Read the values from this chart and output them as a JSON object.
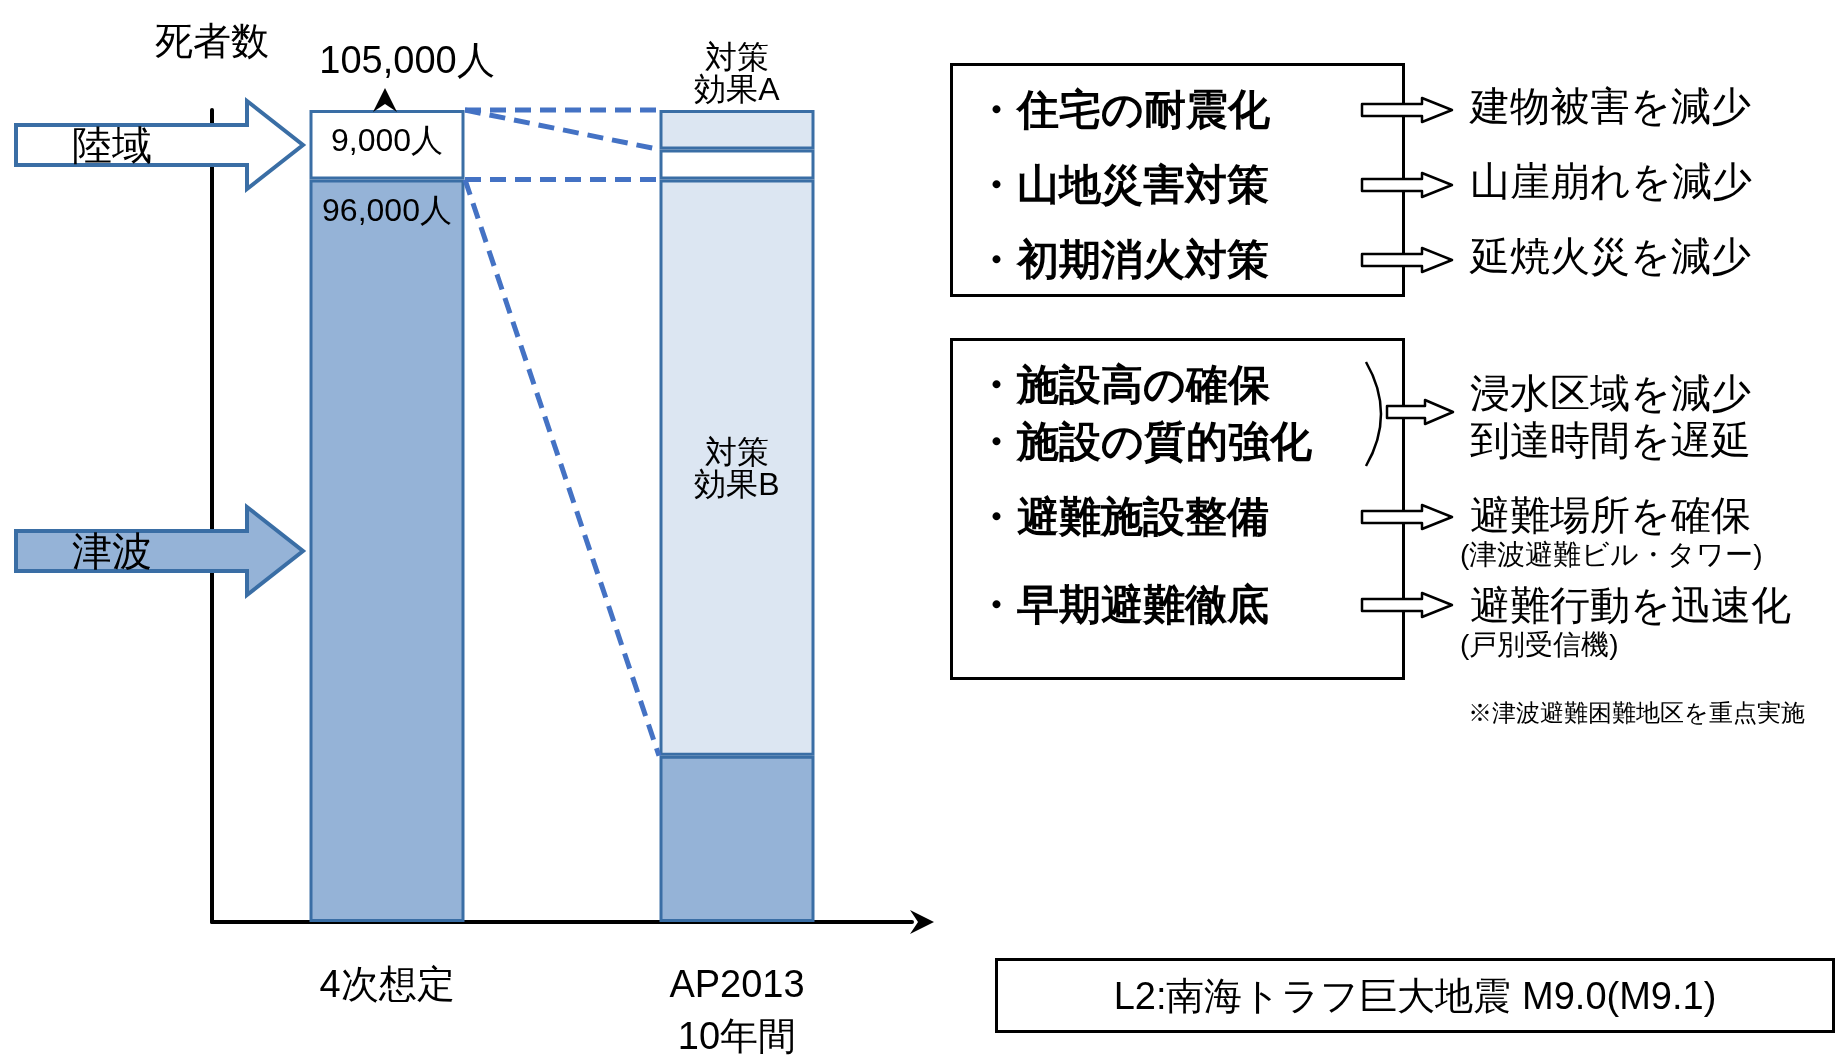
{
  "chart_data": {
    "type": "bar",
    "stacked": true,
    "ylabel": "死者数",
    "ylim": [
      0,
      105000
    ],
    "tick_labels": "x",
    "categories": [
      "4次想定",
      "AP2013\n10年間"
    ],
    "series": [
      {
        "name": "津波",
        "color": "#95b3d7",
        "values": [
          96000,
          21500
        ],
        "value_labels": [
          "96,000人",
          null
        ]
      },
      {
        "name": "対策効果B",
        "color": "#dce6f2",
        "values": [
          null,
          74500
        ]
      },
      {
        "name": "陸域",
        "color": "#ffffff",
        "values": [
          9000,
          3900
        ],
        "value_labels": [
          "9,000人",
          null
        ]
      },
      {
        "name": "対策効果A",
        "color": "#dce6f2",
        "values": [
          null,
          5100
        ]
      }
    ],
    "totals": [
      "105,000人",
      null
    ],
    "annotations": [
      "・住宅の耐震化",
      "建物被害を減少",
      "・山地災害対策",
      "山崖崩れを減少",
      "・初期消火対策",
      "延焼火災を減少",
      "・施設高の確保",
      "・施設の質的強化",
      "浸水区域を減少",
      "到達時間を遅延",
      "・避難施設整備",
      "避難場所を確保",
      "(津波避難ビル・タワー)",
      "・早期避難徹底",
      "避難行動を迅速化",
      "(戸別受信機)",
      "※津波避難困難地区を重点実施",
      "L2:南海トラフ巨大地震 M9.0(M9.1)"
    ]
  }
}
